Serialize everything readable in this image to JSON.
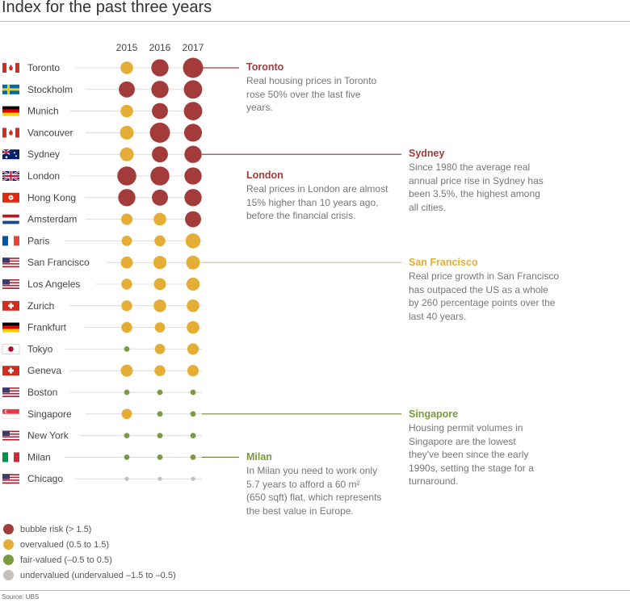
{
  "title": "Index for the past three years",
  "source": "Source: UBS",
  "colors": {
    "bubble": "#a33b3b",
    "overvalued": "#e3ad36",
    "fair": "#7a9a3e",
    "undervalued": "#c4c0bb",
    "line": "#dcdcdc",
    "singapore_line": "#6e8a3a",
    "sf_line": "#c9bb86",
    "sydney_line": "#8a3333"
  },
  "legend": [
    {
      "key": "bubble",
      "label": "bubble risk  (> 1.5)"
    },
    {
      "key": "overvalued",
      "label": "overvalued (0.5 to 1.5)"
    },
    {
      "key": "fair",
      "label": "fair-valued (–0.5 to 0.5)"
    },
    {
      "key": "undervalued",
      "label": "undervalued (undervalued –1.5 to –0.5)"
    }
  ],
  "annotations": [
    {
      "city": "Toronto",
      "title": "Toronto",
      "color": "#a33b3b",
      "text": [
        "Real housing prices in Toronto",
        "rose 50% over the last five",
        "years."
      ]
    },
    {
      "city": "London",
      "title": "London",
      "color": "#a33b3b",
      "text": [
        "Real prices in London are almost",
        "15% higher than 10 years ago,",
        "before the financial crisis."
      ]
    },
    {
      "city": "Sydney",
      "title": "Sydney",
      "color": "#a33b3b",
      "text": [
        "Since 1980 the average real",
        "annual price rise in Sydney has",
        "been 3.5%, the highest among",
        "all cities."
      ]
    },
    {
      "city": "San Francisco",
      "title": "San Francisco",
      "color": "#e3ad36",
      "text": [
        "Real price growth in San Francisco",
        "has outpaced the US as a whole",
        "by 260 percentage points over the",
        "last 40 years."
      ]
    },
    {
      "city": "Singapore",
      "title": "Singapore",
      "color": "#7a9a3e",
      "text": [
        "Housing permit volumes in",
        "Singapore are the lowest",
        "they've been since the early",
        "1990s, setting the stage for a",
        "turnaround."
      ]
    },
    {
      "city": "Milan",
      "title": "Milan",
      "color": "#7a9a3e",
      "text": [
        "In Milan you need to work only",
        "5.7 years to afford a 60 m²",
        "(650 sqft) flat, which represents",
        "the best value in Europe."
      ]
    }
  ],
  "chart_data": {
    "type": "scatter",
    "title": "Index for the past three years",
    "years": [
      "2015",
      "2016",
      "2017"
    ],
    "categories_description": "UBS Global Real Estate Bubble Index; bubble size and colour encode index value",
    "rows": [
      {
        "city": "Toronto",
        "flag": "CA",
        "values": [
          1.0,
          1.8,
          2.3
        ]
      },
      {
        "city": "Stockholm",
        "flag": "SE",
        "values": [
          1.6,
          1.8,
          2.0
        ]
      },
      {
        "city": "Munich",
        "flag": "DE",
        "values": [
          1.0,
          1.6,
          2.0
        ]
      },
      {
        "city": "Vancouver",
        "flag": "CA",
        "values": [
          1.2,
          2.3,
          1.9
        ]
      },
      {
        "city": "Sydney",
        "flag": "AU",
        "values": [
          1.2,
          1.6,
          1.8
        ]
      },
      {
        "city": "London",
        "flag": "GB",
        "values": [
          2.1,
          2.1,
          1.8
        ]
      },
      {
        "city": "Hong Kong",
        "flag": "HK",
        "values": [
          1.8,
          1.6,
          1.8
        ]
      },
      {
        "city": "Amsterdam",
        "flag": "NL",
        "values": [
          0.8,
          1.0,
          1.6
        ]
      },
      {
        "city": "Paris",
        "flag": "FR",
        "values": [
          0.6,
          0.7,
          1.4
        ]
      },
      {
        "city": "San Francisco",
        "flag": "US",
        "values": [
          0.9,
          1.1,
          1.2
        ]
      },
      {
        "city": "Los Angeles",
        "flag": "US",
        "values": [
          0.7,
          0.9,
          1.1
        ]
      },
      {
        "city": "Zurich",
        "flag": "CH",
        "values": [
          0.7,
          1.0,
          1.0
        ]
      },
      {
        "city": "Frankfurt",
        "flag": "DE",
        "values": [
          0.7,
          0.6,
          1.0
        ]
      },
      {
        "city": "Tokyo",
        "flag": "JP",
        "values": [
          0.5,
          0.6,
          0.8
        ]
      },
      {
        "city": "Geneva",
        "flag": "CH",
        "values": [
          0.9,
          0.7,
          0.8
        ]
      },
      {
        "city": "Boston",
        "flag": "US",
        "values": [
          0.1,
          0.3,
          0.4
        ]
      },
      {
        "city": "Singapore",
        "flag": "SG",
        "values": [
          0.6,
          0.4,
          0.3
        ]
      },
      {
        "city": "New York",
        "flag": "US",
        "values": [
          0.1,
          0.1,
          0.1
        ]
      },
      {
        "city": "Milan",
        "flag": "IT",
        "values": [
          0.0,
          0.1,
          0.1
        ]
      },
      {
        "city": "Chicago",
        "flag": "US",
        "values": [
          -0.6,
          -0.6,
          -0.6
        ]
      }
    ],
    "thresholds": {
      "bubble": 1.5,
      "overvalued": 0.5,
      "fair": -0.5,
      "undervalued": -1.5
    }
  }
}
